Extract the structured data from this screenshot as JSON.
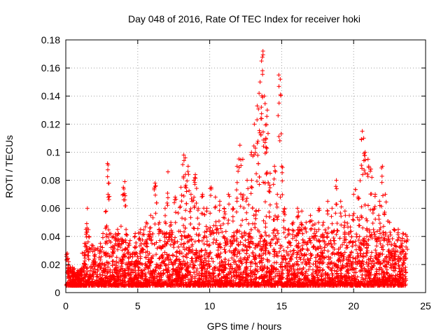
{
  "chart_data": {
    "type": "scatter",
    "title": "Day 048 of 2016, Rate Of TEC Index for receiver hoki",
    "xlabel": "GPS time / hours",
    "ylabel": "ROTI / TECUs",
    "xlim": [
      0,
      25
    ],
    "ylim": [
      0,
      0.18
    ],
    "x_ticks": [
      "0",
      "5",
      "10",
      "15",
      "20",
      "25"
    ],
    "y_ticks": [
      "0",
      "0.02",
      "0.04",
      "0.06",
      "0.08",
      "0.1",
      "0.12",
      "0.14",
      "0.16",
      "0.18"
    ],
    "grid": true,
    "marker": "+",
    "color": "#ff0000",
    "series": [
      {
        "values_note": "",
        "x": [
          0.1,
          0.2,
          0.3,
          0.5,
          0.8,
          1.0,
          1.3,
          1.4,
          1.5,
          1.6,
          2.0,
          2.4,
          2.8,
          2.9,
          3.0,
          3.3,
          3.6,
          4.0,
          4.1,
          4.4,
          4.8,
          5.2,
          5.6,
          5.9,
          6.2,
          6.5,
          6.9,
          7.1,
          7.3,
          7.6,
          8.0,
          8.2,
          8.3,
          8.5,
          8.7,
          8.9,
          9.0,
          9.2,
          9.5,
          9.8,
          10.1,
          10.4,
          10.7,
          11.0,
          11.3,
          11.6,
          11.9,
          12.1,
          12.3,
          12.6,
          12.9,
          13.1,
          13.3,
          13.5,
          13.6,
          13.7,
          13.8,
          13.9,
          14.0,
          14.2,
          14.5,
          14.7,
          14.8,
          14.9,
          15.0,
          15.2,
          15.5,
          15.8,
          16.1,
          16.4,
          16.7,
          17.0,
          17.3,
          17.6,
          17.9,
          18.2,
          18.5,
          18.8,
          19.1,
          19.4,
          19.7,
          20.0,
          20.3,
          20.6,
          20.7,
          20.8,
          21.0,
          21.2,
          21.5,
          21.8,
          22.0,
          22.2,
          22.5,
          22.8,
          23.1,
          23.4,
          23.7
        ],
        "y": [
          0.028,
          0.022,
          0.018,
          0.015,
          0.014,
          0.016,
          0.035,
          0.045,
          0.06,
          0.04,
          0.03,
          0.035,
          0.058,
          0.092,
          0.078,
          0.04,
          0.045,
          0.075,
          0.079,
          0.035,
          0.04,
          0.045,
          0.05,
          0.055,
          0.078,
          0.05,
          0.06,
          0.086,
          0.05,
          0.068,
          0.075,
          0.098,
          0.096,
          0.09,
          0.07,
          0.08,
          0.084,
          0.06,
          0.07,
          0.06,
          0.075,
          0.068,
          0.065,
          0.06,
          0.07,
          0.06,
          0.09,
          0.105,
          0.095,
          0.08,
          0.1,
          0.12,
          0.133,
          0.15,
          0.165,
          0.172,
          0.14,
          0.11,
          0.13,
          0.085,
          0.09,
          0.07,
          0.155,
          0.152,
          0.09,
          0.06,
          0.045,
          0.05,
          0.06,
          0.058,
          0.05,
          0.055,
          0.045,
          0.06,
          0.05,
          0.065,
          0.06,
          0.08,
          0.065,
          0.058,
          0.055,
          0.07,
          0.068,
          0.115,
          0.11,
          0.1,
          0.095,
          0.088,
          0.07,
          0.065,
          0.09,
          0.07,
          0.05,
          0.045,
          0.045,
          0.042,
          0.04
        ]
      }
    ]
  }
}
